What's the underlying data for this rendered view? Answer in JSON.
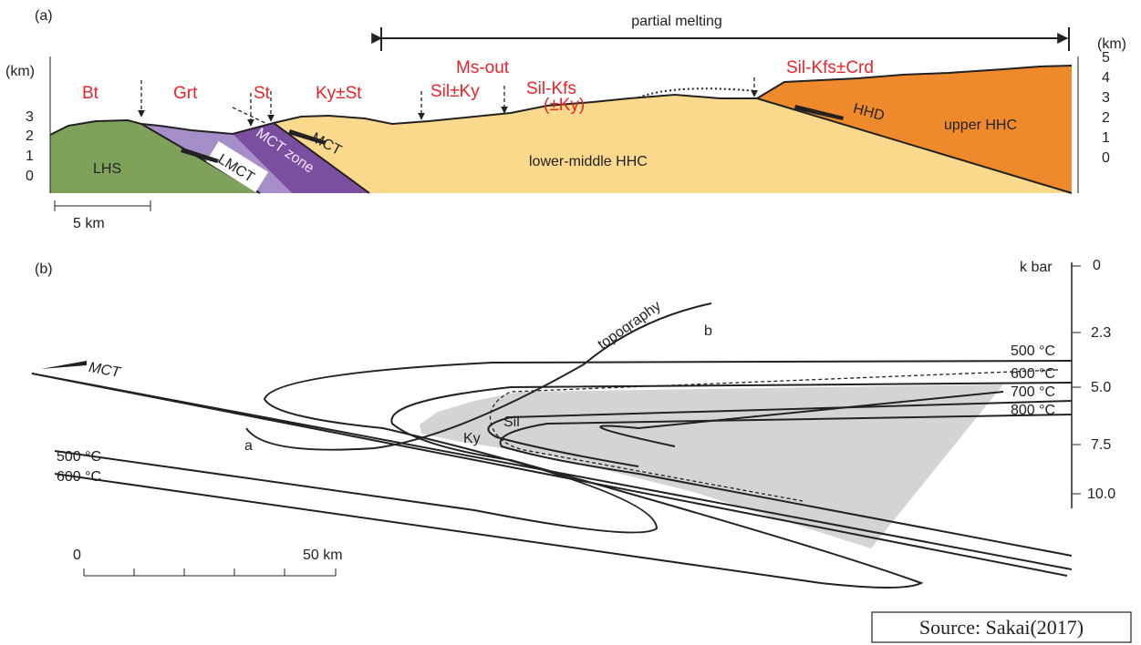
{
  "panel_a": {
    "label": "(a)",
    "span_label": "partial melting",
    "left_axis": {
      "unit": "(km)",
      "labels": [
        "3",
        "2",
        "1",
        "0"
      ]
    },
    "right_axis": {
      "unit": "(km)",
      "labels": [
        "5",
        "4",
        "3",
        "2",
        "1",
        "0"
      ]
    },
    "minerals": [
      "Bt",
      "Grt",
      "St",
      "Ky±St",
      "Ms-out",
      "Sil±Ky",
      "Sil-Kfs",
      "(±Ky)",
      "Sil-Kfs±Crd"
    ],
    "units": [
      "LHS",
      "LMCT",
      "MCT zone",
      "MCT",
      "lower-middle HHC",
      "HHD",
      "upper HHC"
    ],
    "scale_bar": "5 km"
  },
  "panel_b": {
    "label": "(b)",
    "pressure_axis": {
      "unit": "k bar",
      "labels": [
        "0",
        "2.3",
        "5.0",
        "7.5",
        "10.0"
      ]
    },
    "isotherms_right": [
      "500 °C",
      "600 °C",
      "700 °C",
      "800 °C"
    ],
    "isotherms_left": [
      "500 °C",
      "600 °C"
    ],
    "fault": "MCT",
    "profile": "topography",
    "profile_ends": [
      "a",
      "b"
    ],
    "phase_fields": [
      "Ky",
      "Sil"
    ],
    "scale_bar": [
      "0",
      "50 km"
    ]
  },
  "source": "Source: Sakai(2017)"
}
